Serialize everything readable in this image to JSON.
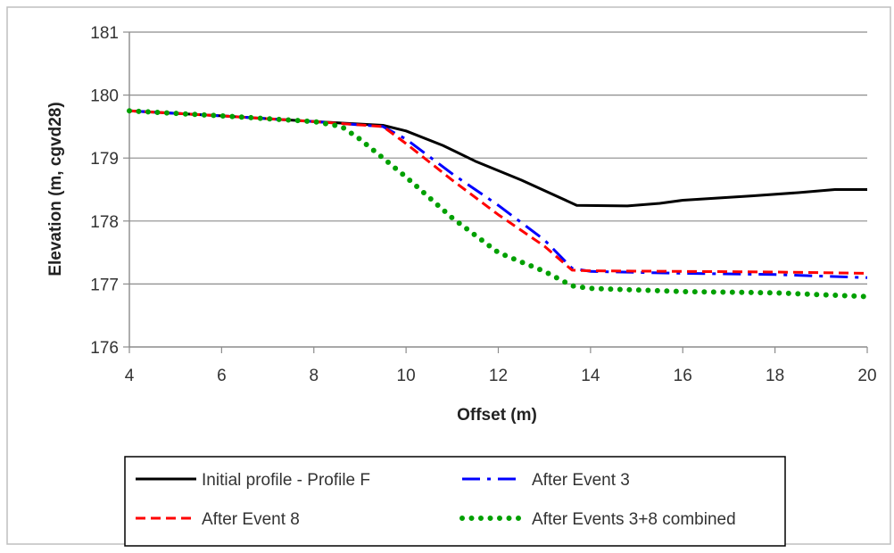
{
  "caption": "",
  "chart_data": {
    "type": "line",
    "title": "",
    "xlabel": "Offset (m)",
    "ylabel": "Elevation (m, cgvd28)",
    "xlim": [
      4,
      20
    ],
    "ylim": [
      176,
      181
    ],
    "xticks": [
      4,
      6,
      8,
      10,
      12,
      14,
      16,
      18,
      20
    ],
    "yticks": [
      176,
      177,
      178,
      179,
      180,
      181
    ],
    "grid": {
      "horizontal": true,
      "vertical": false
    },
    "legend_position": "bottom",
    "series": [
      {
        "name": "Initial profile - Profile F",
        "color": "#000000",
        "style": "solid",
        "points": [
          [
            4,
            179.75
          ],
          [
            6,
            179.67
          ],
          [
            8,
            179.58
          ],
          [
            9.5,
            179.52
          ],
          [
            10,
            179.43
          ],
          [
            10.8,
            179.2
          ],
          [
            11.5,
            178.95
          ],
          [
            12.5,
            178.65
          ],
          [
            13.7,
            178.25
          ],
          [
            14.8,
            178.24
          ],
          [
            15.5,
            178.28
          ],
          [
            16,
            178.33
          ],
          [
            17.5,
            178.4
          ],
          [
            18.5,
            178.45
          ],
          [
            19.3,
            178.5
          ],
          [
            20,
            178.5
          ]
        ]
      },
      {
        "name": "After Event 3",
        "color": "#0000ff",
        "style": "dashdot",
        "points": [
          [
            4,
            179.75
          ],
          [
            6,
            179.67
          ],
          [
            8,
            179.58
          ],
          [
            9.5,
            179.5
          ],
          [
            10,
            179.3
          ],
          [
            11,
            178.75
          ],
          [
            12,
            178.25
          ],
          [
            13,
            177.7
          ],
          [
            13.6,
            177.25
          ],
          [
            14,
            177.2
          ],
          [
            16,
            177.17
          ],
          [
            18,
            177.15
          ],
          [
            20,
            177.1
          ]
        ]
      },
      {
        "name": "After Event 8",
        "color": "#ff0000",
        "style": "dashed",
        "points": [
          [
            4,
            179.75
          ],
          [
            6,
            179.67
          ],
          [
            8,
            179.58
          ],
          [
            9.5,
            179.5
          ],
          [
            10,
            179.23
          ],
          [
            11,
            178.65
          ],
          [
            12,
            178.1
          ],
          [
            13,
            177.6
          ],
          [
            13.6,
            177.22
          ],
          [
            14,
            177.21
          ],
          [
            16,
            177.2
          ],
          [
            18,
            177.19
          ],
          [
            20,
            177.17
          ]
        ]
      },
      {
        "name": "After Events 3+8 combined",
        "color": "#00a000",
        "style": "dotted",
        "points": [
          [
            4,
            179.75
          ],
          [
            6,
            179.67
          ],
          [
            8,
            179.58
          ],
          [
            8.6,
            179.5
          ],
          [
            9,
            179.3
          ],
          [
            10,
            178.7
          ],
          [
            11,
            178.05
          ],
          [
            12,
            177.5
          ],
          [
            13,
            177.2
          ],
          [
            13.6,
            176.97
          ],
          [
            14,
            176.93
          ],
          [
            16,
            176.88
          ],
          [
            18,
            176.86
          ],
          [
            20,
            176.8
          ]
        ]
      }
    ]
  }
}
